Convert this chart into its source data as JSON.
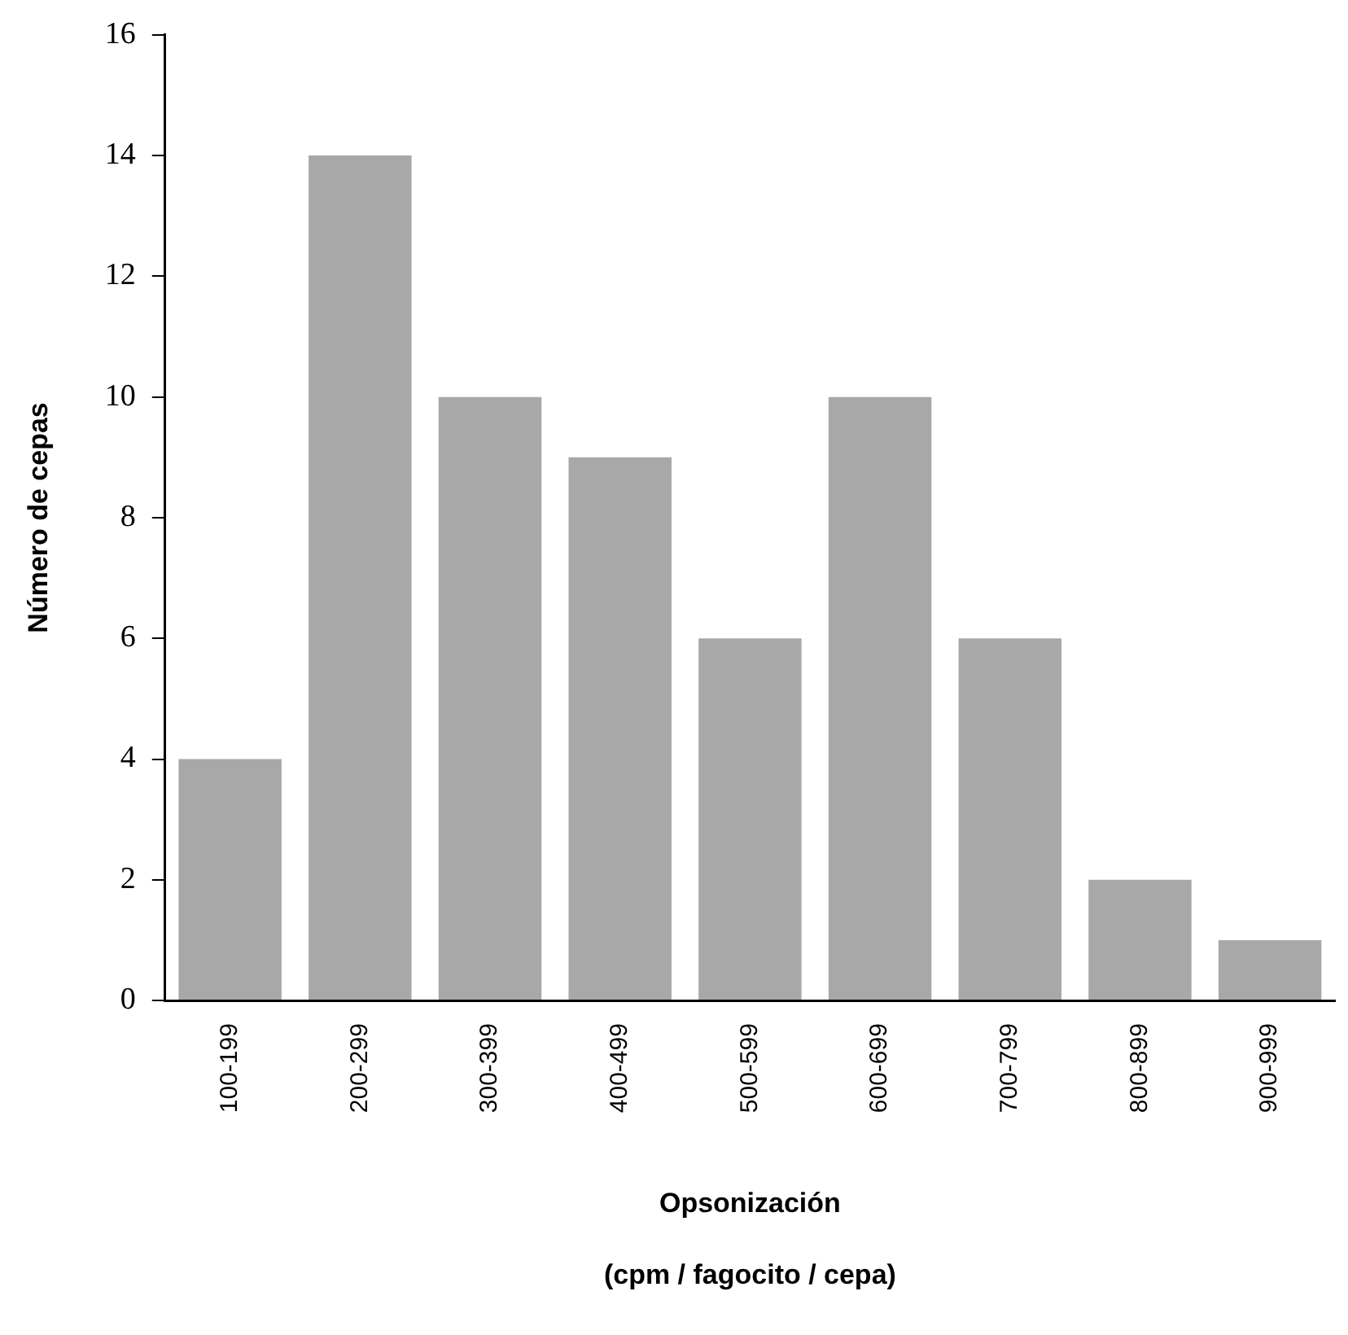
{
  "chart_data": {
    "type": "bar",
    "xlabel": "Opsonización\n(cpm / fagocito / cepa)",
    "ylabel": "Número de cepas",
    "categories": [
      "100-199",
      "200-299",
      "300-399",
      "400-499",
      "500-599",
      "600-699",
      "700-799",
      "800-899",
      "900-999"
    ],
    "values": [
      4,
      14,
      10,
      9,
      6,
      10,
      6,
      2,
      1
    ],
    "color": "#a8a8a8",
    "ylim": [
      0,
      16
    ],
    "yticks": [
      0,
      2,
      4,
      6,
      8,
      10,
      12,
      14,
      16
    ],
    "grid": false,
    "legend": false
  }
}
